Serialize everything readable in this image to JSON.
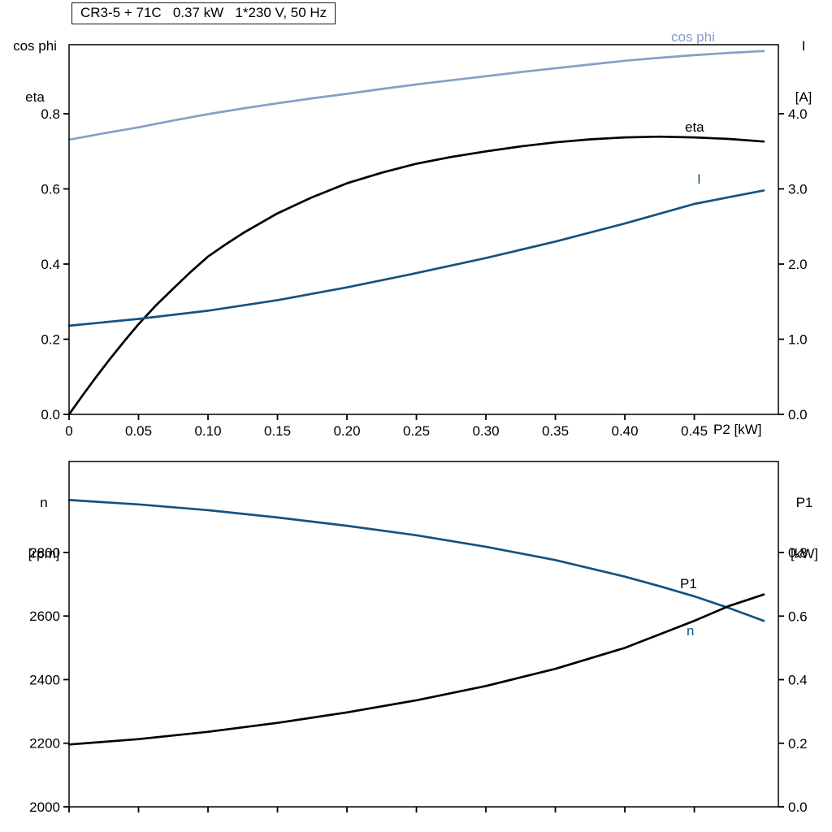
{
  "labels": {
    "title": "CR3-5 + 71C   0.37 kW   1*230 V, 50 Hz",
    "top_left_line1": "cos phi",
    "top_left_line2": "eta",
    "top_right_line1": "I",
    "top_right_line2": "[A]",
    "x_axis": "P2 [kW]",
    "bottom_left_line1": "n",
    "bottom_left_line2": "[rpm]",
    "bottom_right_line1": "P1",
    "bottom_right_line2": "[kW]",
    "curve_cos_phi": "cos phi",
    "curve_eta": "eta",
    "curve_current": "I",
    "curve_p1": "P1",
    "curve_n": "n"
  },
  "colors": {
    "light_blue": "#85a0c7",
    "dark_blue": "#16527f",
    "black": "#000000"
  },
  "chart_data": [
    {
      "type": "line",
      "title": "CR3-5 + 71C   0.37 kW   1*230 V, 50 Hz",
      "xlabel": "P2 [kW]",
      "xlim": [
        0,
        0.5105
      ],
      "x_ticks": [
        0,
        0.05,
        0.1,
        0.15,
        0.2,
        0.25,
        0.3,
        0.35,
        0.4,
        0.45
      ],
      "x_tick_labels": [
        "0",
        "0.05",
        "0.10",
        "0.15",
        "0.20",
        "0.25",
        "0.30",
        "0.35",
        "0.40",
        "0.45"
      ],
      "left_axis": {
        "label": "cos phi / eta",
        "lim": [
          0,
          0.9838
        ],
        "ticks": [
          0,
          0.2,
          0.4,
          0.6,
          0.8
        ],
        "tick_labels": [
          "0.0",
          "0.2",
          "0.4",
          "0.6",
          "0.8"
        ]
      },
      "right_axis": {
        "label": "I [A]",
        "lim": [
          0,
          4.919
        ],
        "ticks": [
          0,
          1,
          2,
          3,
          4
        ],
        "tick_labels": [
          "0.0",
          "1.0",
          "2.0",
          "3.0",
          "4.0"
        ]
      },
      "grid": false,
      "series": [
        {
          "name": "cos phi",
          "axis": "left",
          "color": "light_blue",
          "x": [
            0,
            0.025,
            0.05,
            0.075,
            0.1,
            0.125,
            0.15,
            0.175,
            0.2,
            0.225,
            0.25,
            0.275,
            0.3,
            0.325,
            0.35,
            0.375,
            0.4,
            0.425,
            0.45,
            0.475,
            0.5
          ],
          "y": [
            0.731,
            0.748,
            0.764,
            0.782,
            0.799,
            0.814,
            0.828,
            0.841,
            0.853,
            0.866,
            0.878,
            0.889,
            0.9,
            0.911,
            0.921,
            0.931,
            0.941,
            0.949,
            0.956,
            0.962,
            0.967
          ]
        },
        {
          "name": "eta",
          "axis": "left",
          "color": "black",
          "x": [
            0,
            0.01,
            0.02,
            0.03,
            0.04,
            0.05,
            0.0625,
            0.075,
            0.0875,
            0.1,
            0.1125,
            0.125,
            0.15,
            0.175,
            0.2,
            0.225,
            0.25,
            0.275,
            0.3,
            0.325,
            0.35,
            0.375,
            0.4,
            0.425,
            0.45,
            0.475,
            0.5
          ],
          "y": [
            0,
            0.052,
            0.102,
            0.15,
            0.196,
            0.24,
            0.29,
            0.335,
            0.379,
            0.42,
            0.452,
            0.482,
            0.535,
            0.578,
            0.615,
            0.643,
            0.667,
            0.685,
            0.7,
            0.713,
            0.724,
            0.732,
            0.737,
            0.739,
            0.737,
            0.733,
            0.726
          ]
        },
        {
          "name": "I",
          "axis": "right",
          "color": "dark_blue",
          "x": [
            0,
            0.05,
            0.1,
            0.15,
            0.2,
            0.25,
            0.3,
            0.35,
            0.4,
            0.45,
            0.5
          ],
          "y": [
            1.18,
            1.27,
            1.38,
            1.52,
            1.69,
            1.88,
            2.08,
            2.3,
            2.54,
            2.8,
            2.98
          ]
        }
      ]
    },
    {
      "type": "line",
      "title": "",
      "xlabel": "P2 [kW]",
      "xlim": [
        0,
        0.5105
      ],
      "x_ticks": [
        0,
        0.05,
        0.1,
        0.15,
        0.2,
        0.25,
        0.3,
        0.35,
        0.4,
        0.45
      ],
      "x_tick_labels": [
        "",
        "",
        "",
        "",
        "",
        "",
        "",
        "",
        "",
        ""
      ],
      "left_axis": {
        "label": "n [rpm]",
        "lim": [
          2000,
          3086
        ],
        "ticks": [
          2000,
          2200,
          2400,
          2600,
          2800
        ],
        "tick_labels": [
          "2000",
          "2200",
          "2400",
          "2600",
          "2800"
        ]
      },
      "right_axis": {
        "label": "P1 [kW]",
        "lim": [
          0,
          1.0864
        ],
        "ticks": [
          0,
          0.2,
          0.4,
          0.6,
          0.8
        ],
        "tick_labels": [
          "0.0",
          "0.2",
          "0.4",
          "0.6",
          "0.8"
        ]
      },
      "grid": false,
      "series": [
        {
          "name": "n",
          "axis": "left",
          "color": "dark_blue",
          "x": [
            0,
            0.05,
            0.1,
            0.15,
            0.2,
            0.25,
            0.3,
            0.35,
            0.4,
            0.425,
            0.45,
            0.475,
            0.5
          ],
          "y": [
            2965,
            2951,
            2933,
            2910,
            2884,
            2854,
            2818,
            2776,
            2724,
            2694,
            2662,
            2625,
            2585
          ]
        },
        {
          "name": "P1",
          "axis": "right",
          "color": "black",
          "x": [
            0,
            0.05,
            0.1,
            0.15,
            0.2,
            0.25,
            0.3,
            0.35,
            0.4,
            0.45,
            0.475,
            0.5
          ],
          "y": [
            0.196,
            0.213,
            0.236,
            0.264,
            0.297,
            0.335,
            0.38,
            0.434,
            0.5,
            0.585,
            0.632,
            0.668
          ]
        }
      ]
    }
  ]
}
